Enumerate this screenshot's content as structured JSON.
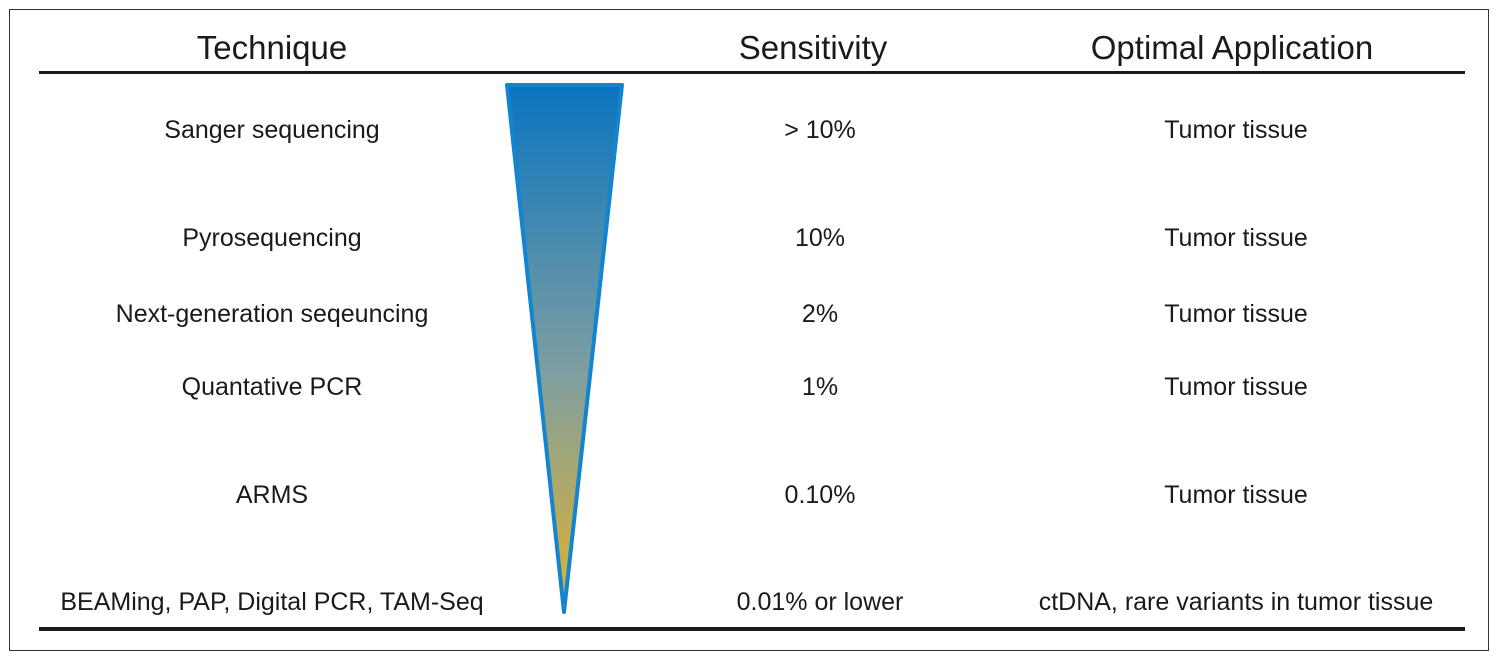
{
  "headers": {
    "technique": "Technique",
    "sensitivity": "Sensitivity",
    "application": "Optimal Application"
  },
  "rows": [
    {
      "technique": "Sanger sequencing",
      "sensitivity": "> 10%",
      "application": "Tumor tissue"
    },
    {
      "technique": "Pyrosequencing",
      "sensitivity": "10%",
      "application": "Tumor tissue"
    },
    {
      "technique": "Next-generation seqeuncing",
      "sensitivity": "2%",
      "application": "Tumor tissue"
    },
    {
      "technique": "Quantative PCR",
      "sensitivity": "1%",
      "application": "Tumor tissue"
    },
    {
      "technique": "ARMS",
      "sensitivity": "0.10%",
      "application": "Tumor tissue"
    },
    {
      "technique": "BEAMing, PAP, Digital PCR, TAM-Seq",
      "sensitivity": "0.01% or lower",
      "application": "ctDNA, rare variants in tumor tissue"
    }
  ],
  "colors": {
    "wedge_top": "#0a74c0",
    "wedge_mid": "#7f9fa0",
    "wedge_bottom": "#e0b32c",
    "wedge_outline": "#1384d0",
    "rule": "#1a1a1a"
  }
}
